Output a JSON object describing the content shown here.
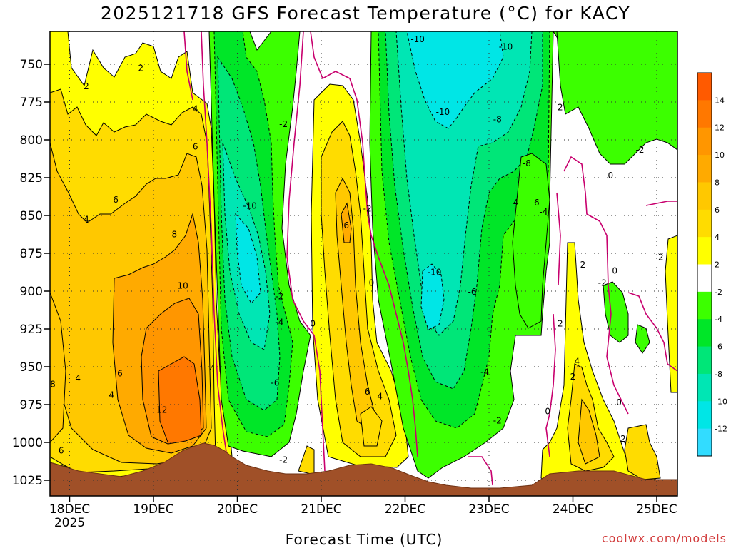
{
  "header": {
    "title": "2025121718 GFS Forecast Temperature (°C) for KACY"
  },
  "footer": {
    "credit": "coolwx.com/models"
  },
  "chart_data": {
    "type": "heatmap",
    "title": "2025121718 GFS Forecast Temperature (°C) for KACY",
    "xlabel": "Forecast Time (UTC)",
    "ylabel": "",
    "x_ticks": [
      "18DEC",
      "19DEC",
      "20DEC",
      "21DEC",
      "22DEC",
      "23DEC",
      "24DEC",
      "25DEC"
    ],
    "x_tick_sublabel": "2025",
    "y_ticks": [
      750,
      775,
      800,
      825,
      850,
      875,
      900,
      925,
      950,
      975,
      1000,
      1025
    ],
    "y_axis_inverted": true,
    "grid": "dotted",
    "colorbar": {
      "labels": [
        "14",
        "12",
        "10",
        "8",
        "6",
        "4",
        "2",
        "-2",
        "-4",
        "-6",
        "-8",
        "-10",
        "-12"
      ],
      "colors": [
        "#ff5a00",
        "#ff7800",
        "#ff9600",
        "#ffaa00",
        "#ffc800",
        "#ffdc00",
        "#ffff00",
        "#ffffff",
        "#3cff00",
        "#00e628",
        "#00e678",
        "#00e6b4",
        "#00e6e6",
        "#32dcff"
      ]
    },
    "contour_labels": [
      {
        "text": "2",
        "day": 0.2,
        "p": 765
      },
      {
        "text": "2",
        "day": 0.85,
        "p": 753
      },
      {
        "text": "4",
        "day": 1.5,
        "p": 780
      },
      {
        "text": "6",
        "day": 1.5,
        "p": 805
      },
      {
        "text": "6",
        "day": 0.55,
        "p": 840
      },
      {
        "text": "4",
        "day": 0.2,
        "p": 853
      },
      {
        "text": "8",
        "day": 1.25,
        "p": 863
      },
      {
        "text": "10",
        "day": 1.35,
        "p": 897
      },
      {
        "text": "6",
        "day": 0.6,
        "p": 955
      },
      {
        "text": "4",
        "day": 0.5,
        "p": 969
      },
      {
        "text": "4",
        "day": 0.1,
        "p": 958
      },
      {
        "text": "8",
        "day": -0.2,
        "p": 962
      },
      {
        "text": "12",
        "day": 1.1,
        "p": 979
      },
      {
        "text": "6",
        "day": -0.1,
        "p": 1006
      },
      {
        "text": "4",
        "day": 1.7,
        "p": 952
      },
      {
        "text": "-10",
        "day": 2.15,
        "p": 844
      },
      {
        "text": "-2",
        "day": 2.55,
        "p": 790
      },
      {
        "text": "-2",
        "day": 2.5,
        "p": 904
      },
      {
        "text": "-4",
        "day": 2.5,
        "p": 921
      },
      {
        "text": "0",
        "day": 2.9,
        "p": 922
      },
      {
        "text": "-6",
        "day": 2.45,
        "p": 961
      },
      {
        "text": "-2",
        "day": 2.55,
        "p": 1012
      },
      {
        "text": "6",
        "day": 3.3,
        "p": 857
      },
      {
        "text": "-2",
        "day": 3.55,
        "p": 846
      },
      {
        "text": "0",
        "day": 3.6,
        "p": 895
      },
      {
        "text": "6",
        "day": 3.55,
        "p": 967
      },
      {
        "text": "4",
        "day": 3.7,
        "p": 970
      },
      {
        "text": "-10",
        "day": 4.15,
        "p": 734
      },
      {
        "text": "-10",
        "day": 4.45,
        "p": 782
      },
      {
        "text": "-8",
        "day": 5.1,
        "p": 787
      },
      {
        "text": "-10",
        "day": 5.2,
        "p": 739
      },
      {
        "text": "-8",
        "day": 5.45,
        "p": 816
      },
      {
        "text": "-4",
        "day": 5.3,
        "p": 842
      },
      {
        "text": "-6",
        "day": 5.55,
        "p": 842
      },
      {
        "text": "-4",
        "day": 5.65,
        "p": 848
      },
      {
        "text": "-10",
        "day": 4.35,
        "p": 888
      },
      {
        "text": "-6",
        "day": 4.8,
        "p": 901
      },
      {
        "text": "-4",
        "day": 4.95,
        "p": 954
      },
      {
        "text": "-2",
        "day": 5.1,
        "p": 986
      },
      {
        "text": "2",
        "day": 5.85,
        "p": 779
      },
      {
        "text": "-2",
        "day": 6.8,
        "p": 807
      },
      {
        "text": "0",
        "day": 6.45,
        "p": 824
      },
      {
        "text": "-2",
        "day": 6.1,
        "p": 883
      },
      {
        "text": "0",
        "day": 6.5,
        "p": 887
      },
      {
        "text": "-2",
        "day": 6.35,
        "p": 895
      },
      {
        "text": "2",
        "day": 7.05,
        "p": 878
      },
      {
        "text": "2",
        "day": 5.85,
        "p": 922
      },
      {
        "text": "4",
        "day": 6.05,
        "p": 947
      },
      {
        "text": "2",
        "day": 6.0,
        "p": 957
      },
      {
        "text": "0",
        "day": 6.55,
        "p": 974
      },
      {
        "text": "0",
        "day": 5.7,
        "p": 980
      },
      {
        "text": "2",
        "day": 6.6,
        "p": 998
      }
    ]
  }
}
